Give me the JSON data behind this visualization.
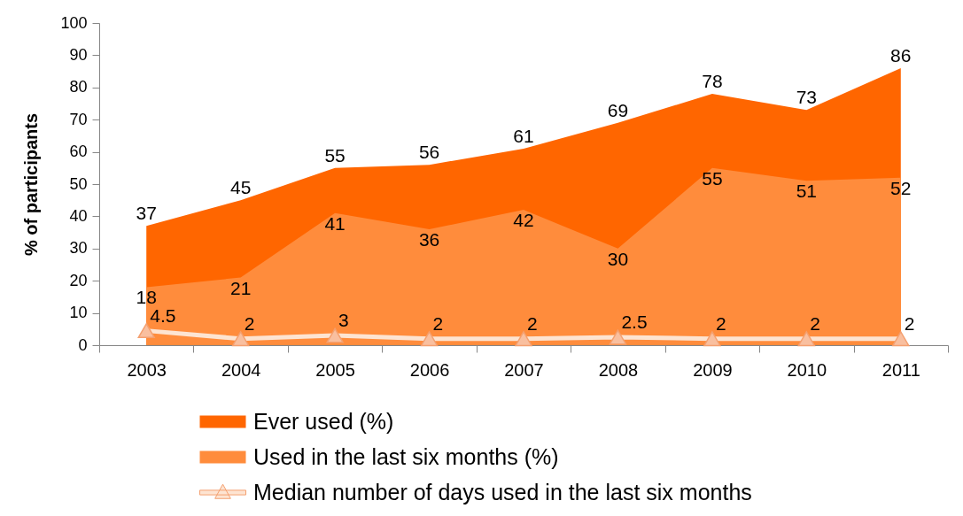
{
  "chart_data": {
    "type": "area",
    "ylabel": "% of participants",
    "categories": [
      "2003",
      "2004",
      "2005",
      "2006",
      "2007",
      "2008",
      "2009",
      "2010",
      "2011"
    ],
    "series": [
      {
        "name": "Ever used (%)",
        "type": "area",
        "color": "#ff6600",
        "values": [
          37,
          45,
          55,
          56,
          61,
          69,
          78,
          73,
          86
        ]
      },
      {
        "name": "Used in the last six months (%)",
        "type": "area",
        "color": "#ff8c3c",
        "values": [
          18,
          21,
          41,
          36,
          42,
          30,
          55,
          51,
          52
        ]
      },
      {
        "name": "Median number of days used in the last six months",
        "type": "line",
        "color": "#fde4d2",
        "marker": "triangle",
        "values": [
          4.5,
          2,
          3,
          2,
          2,
          2.5,
          2,
          2,
          2
        ]
      }
    ],
    "ylim": [
      0,
      100
    ],
    "yticks": [
      0,
      10,
      20,
      30,
      40,
      50,
      60,
      70,
      80,
      90,
      100
    ],
    "grid": false,
    "legend": "bottom",
    "data_labels": true
  }
}
